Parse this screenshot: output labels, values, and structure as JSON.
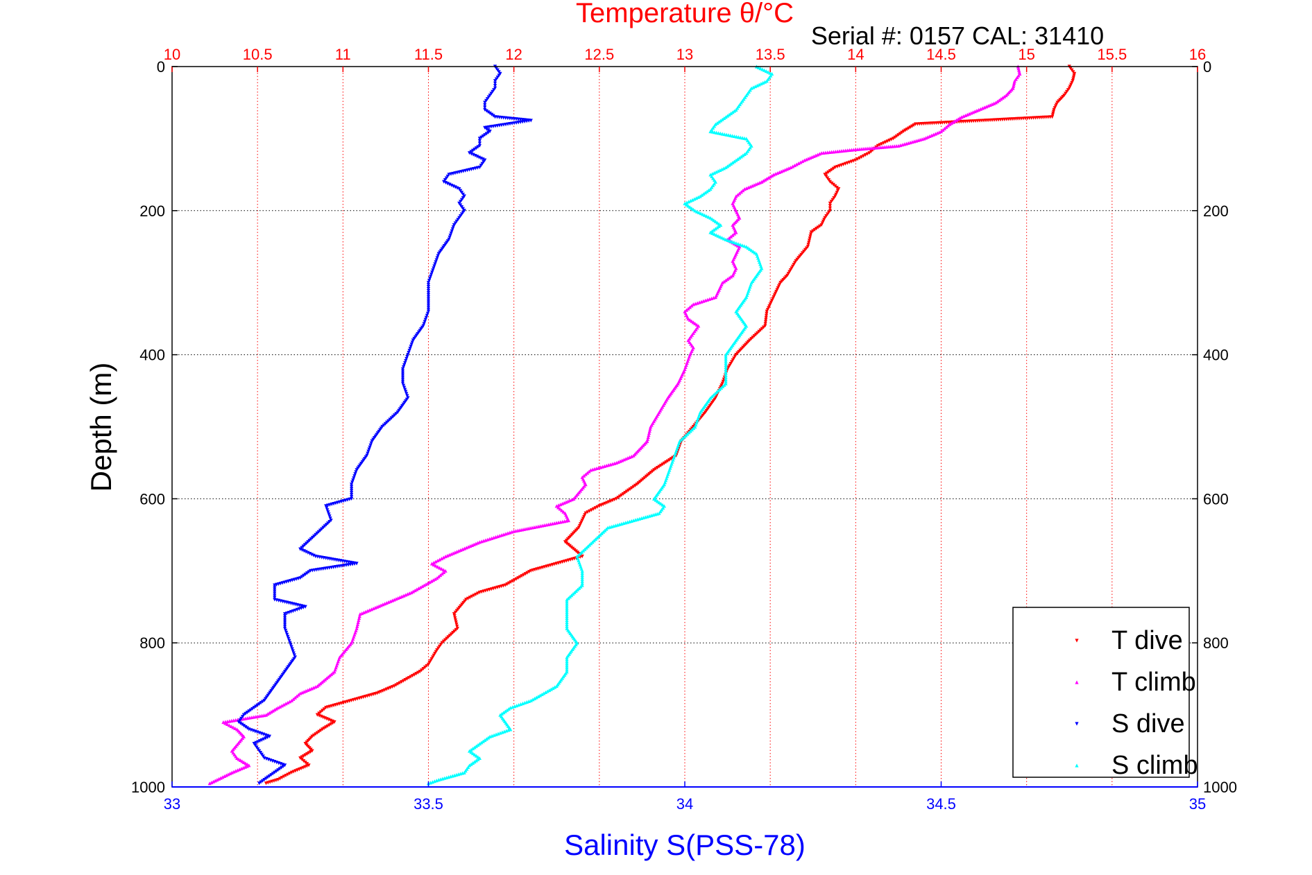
{
  "chart_data": {
    "type": "scatter",
    "title": "Temperature θ/°C",
    "subtitle": "Serial #: 0157  CAL: 31410",
    "ylabel": "Depth (m)",
    "xlabel_bottom": "Salinity S(PSS-78)",
    "xlabel_top": "Temperature θ/°C",
    "ylim": [
      1000,
      0
    ],
    "xlim_bottom": [
      33,
      35
    ],
    "xlim_top": [
      10,
      16
    ],
    "grid": true,
    "legend_position": "bottom-right",
    "y_ticks": [
      "0",
      "200",
      "400",
      "600",
      "800",
      "1000"
    ],
    "x_ticks_top": [
      "10",
      "10.5",
      "11",
      "11.5",
      "12",
      "12.5",
      "13",
      "13.5",
      "14",
      "14.5",
      "15",
      "15.5",
      "16"
    ],
    "x_ticks_bottom": [
      "33",
      "33.5",
      "34",
      "34.5",
      "35"
    ],
    "colors": {
      "temperature_axis": "#ff0000",
      "salinity_axis": "#0000ff",
      "grid_temperature": "#ff0000",
      "grid_depth": "#000000"
    },
    "series": [
      {
        "name": "T dive",
        "axis": "top",
        "color": "#ff0000",
        "marker": "down-triangle",
        "points": [
          [
            15.25,
            0
          ],
          [
            15.28,
            10
          ],
          [
            15.27,
            20
          ],
          [
            15.25,
            30
          ],
          [
            15.22,
            40
          ],
          [
            15.18,
            50
          ],
          [
            15.16,
            60
          ],
          [
            15.15,
            70
          ],
          [
            14.35,
            80
          ],
          [
            14.28,
            90
          ],
          [
            14.22,
            100
          ],
          [
            14.13,
            110
          ],
          [
            14.08,
            120
          ],
          [
            14.0,
            130
          ],
          [
            13.88,
            140
          ],
          [
            13.82,
            150
          ],
          [
            13.85,
            160
          ],
          [
            13.9,
            170
          ],
          [
            13.88,
            180
          ],
          [
            13.85,
            190
          ],
          [
            13.85,
            200
          ],
          [
            13.82,
            210
          ],
          [
            13.8,
            220
          ],
          [
            13.74,
            230
          ],
          [
            13.72,
            250
          ],
          [
            13.65,
            270
          ],
          [
            13.6,
            290
          ],
          [
            13.56,
            300
          ],
          [
            13.52,
            320
          ],
          [
            13.48,
            340
          ],
          [
            13.47,
            360
          ],
          [
            13.38,
            380
          ],
          [
            13.3,
            400
          ],
          [
            13.25,
            420
          ],
          [
            13.22,
            440
          ],
          [
            13.18,
            460
          ],
          [
            13.12,
            480
          ],
          [
            13.05,
            500
          ],
          [
            12.98,
            520
          ],
          [
            12.95,
            540
          ],
          [
            12.82,
            560
          ],
          [
            12.72,
            580
          ],
          [
            12.6,
            600
          ],
          [
            12.5,
            610
          ],
          [
            12.42,
            620
          ],
          [
            12.38,
            640
          ],
          [
            12.3,
            660
          ],
          [
            12.4,
            680
          ],
          [
            12.1,
            700
          ],
          [
            11.95,
            720
          ],
          [
            11.8,
            730
          ],
          [
            11.72,
            740
          ],
          [
            11.65,
            760
          ],
          [
            11.67,
            780
          ],
          [
            11.58,
            800
          ],
          [
            11.55,
            810
          ],
          [
            11.5,
            830
          ],
          [
            11.45,
            840
          ],
          [
            11.3,
            860
          ],
          [
            11.2,
            870
          ],
          [
            11.05,
            880
          ],
          [
            10.9,
            890
          ],
          [
            10.85,
            900
          ],
          [
            10.95,
            910
          ],
          [
            10.88,
            920
          ],
          [
            10.82,
            930
          ],
          [
            10.78,
            940
          ],
          [
            10.82,
            950
          ],
          [
            10.75,
            960
          ],
          [
            10.8,
            970
          ],
          [
            10.7,
            980
          ],
          [
            10.62,
            990
          ],
          [
            10.55,
            995
          ]
        ]
      },
      {
        "name": "T climb",
        "axis": "top",
        "color": "#ff00ff",
        "marker": "up-triangle",
        "points": [
          [
            14.95,
            0
          ],
          [
            14.96,
            10
          ],
          [
            14.93,
            20
          ],
          [
            14.92,
            30
          ],
          [
            14.88,
            40
          ],
          [
            14.82,
            50
          ],
          [
            14.72,
            60
          ],
          [
            14.62,
            70
          ],
          [
            14.55,
            80
          ],
          [
            14.5,
            90
          ],
          [
            14.4,
            100
          ],
          [
            14.25,
            110
          ],
          [
            14.0,
            115
          ],
          [
            13.8,
            120
          ],
          [
            13.7,
            130
          ],
          [
            13.62,
            140
          ],
          [
            13.52,
            150
          ],
          [
            13.45,
            160
          ],
          [
            13.35,
            170
          ],
          [
            13.3,
            180
          ],
          [
            13.28,
            190
          ],
          [
            13.3,
            200
          ],
          [
            13.32,
            210
          ],
          [
            13.28,
            220
          ],
          [
            13.3,
            230
          ],
          [
            13.25,
            240
          ],
          [
            13.32,
            250
          ],
          [
            13.3,
            260
          ],
          [
            13.28,
            270
          ],
          [
            13.3,
            280
          ],
          [
            13.28,
            290
          ],
          [
            13.22,
            300
          ],
          [
            13.2,
            310
          ],
          [
            13.18,
            320
          ],
          [
            13.05,
            330
          ],
          [
            13.0,
            340
          ],
          [
            13.02,
            350
          ],
          [
            13.08,
            360
          ],
          [
            13.05,
            370
          ],
          [
            13.02,
            380
          ],
          [
            13.05,
            390
          ],
          [
            13.03,
            400
          ],
          [
            13.0,
            420
          ],
          [
            12.96,
            440
          ],
          [
            12.9,
            460
          ],
          [
            12.85,
            480
          ],
          [
            12.8,
            500
          ],
          [
            12.78,
            520
          ],
          [
            12.7,
            540
          ],
          [
            12.6,
            550
          ],
          [
            12.45,
            560
          ],
          [
            12.4,
            570
          ],
          [
            12.42,
            580
          ],
          [
            12.35,
            600
          ],
          [
            12.25,
            610
          ],
          [
            12.3,
            620
          ],
          [
            12.32,
            630
          ],
          [
            12.0,
            645
          ],
          [
            11.8,
            660
          ],
          [
            11.7,
            670
          ],
          [
            11.6,
            680
          ],
          [
            11.52,
            690
          ],
          [
            11.6,
            700
          ],
          [
            11.55,
            710
          ],
          [
            11.4,
            730
          ],
          [
            11.2,
            750
          ],
          [
            11.1,
            760
          ],
          [
            11.08,
            780
          ],
          [
            11.05,
            800
          ],
          [
            10.98,
            820
          ],
          [
            10.95,
            840
          ],
          [
            10.85,
            860
          ],
          [
            10.75,
            870
          ],
          [
            10.7,
            880
          ],
          [
            10.62,
            890
          ],
          [
            10.55,
            900
          ],
          [
            10.3,
            910
          ],
          [
            10.38,
            920
          ],
          [
            10.42,
            930
          ],
          [
            10.35,
            950
          ],
          [
            10.38,
            960
          ],
          [
            10.45,
            970
          ],
          [
            10.35,
            980
          ],
          [
            10.22,
            995
          ]
        ]
      },
      {
        "name": "S dive",
        "axis": "bottom",
        "color": "#0000ff",
        "marker": "down-triangle",
        "points": [
          [
            33.63,
            0
          ],
          [
            33.64,
            10
          ],
          [
            33.63,
            20
          ],
          [
            33.63,
            30
          ],
          [
            33.62,
            40
          ],
          [
            33.61,
            50
          ],
          [
            33.61,
            60
          ],
          [
            33.63,
            70
          ],
          [
            33.7,
            75
          ],
          [
            33.61,
            85
          ],
          [
            33.62,
            90
          ],
          [
            33.6,
            100
          ],
          [
            33.6,
            110
          ],
          [
            33.58,
            120
          ],
          [
            33.61,
            130
          ],
          [
            33.6,
            140
          ],
          [
            33.54,
            150
          ],
          [
            33.53,
            160
          ],
          [
            33.56,
            170
          ],
          [
            33.57,
            180
          ],
          [
            33.56,
            190
          ],
          [
            33.57,
            200
          ],
          [
            33.56,
            210
          ],
          [
            33.55,
            220
          ],
          [
            33.54,
            240
          ],
          [
            33.52,
            260
          ],
          [
            33.51,
            280
          ],
          [
            33.5,
            300
          ],
          [
            33.5,
            320
          ],
          [
            33.5,
            340
          ],
          [
            33.49,
            360
          ],
          [
            33.47,
            380
          ],
          [
            33.46,
            400
          ],
          [
            33.45,
            420
          ],
          [
            33.45,
            440
          ],
          [
            33.46,
            460
          ],
          [
            33.44,
            480
          ],
          [
            33.41,
            500
          ],
          [
            33.39,
            520
          ],
          [
            33.38,
            540
          ],
          [
            33.36,
            560
          ],
          [
            33.35,
            580
          ],
          [
            33.35,
            600
          ],
          [
            33.3,
            610
          ],
          [
            33.31,
            630
          ],
          [
            33.28,
            650
          ],
          [
            33.25,
            670
          ],
          [
            33.28,
            680
          ],
          [
            33.36,
            690
          ],
          [
            33.27,
            700
          ],
          [
            33.25,
            710
          ],
          [
            33.2,
            720
          ],
          [
            33.2,
            740
          ],
          [
            33.26,
            750
          ],
          [
            33.22,
            760
          ],
          [
            33.22,
            780
          ],
          [
            33.23,
            800
          ],
          [
            33.24,
            820
          ],
          [
            33.22,
            840
          ],
          [
            33.2,
            860
          ],
          [
            33.18,
            880
          ],
          [
            33.14,
            900
          ],
          [
            33.13,
            910
          ],
          [
            33.15,
            920
          ],
          [
            33.19,
            930
          ],
          [
            33.16,
            940
          ],
          [
            33.17,
            950
          ],
          [
            33.18,
            960
          ],
          [
            33.22,
            970
          ],
          [
            33.2,
            980
          ],
          [
            33.18,
            990
          ],
          [
            33.17,
            995
          ]
        ]
      },
      {
        "name": "S climb",
        "axis": "bottom",
        "color": "#00ffff",
        "marker": "up-triangle",
        "points": [
          [
            34.14,
            0
          ],
          [
            34.17,
            10
          ],
          [
            34.16,
            20
          ],
          [
            34.13,
            30
          ],
          [
            34.12,
            40
          ],
          [
            34.11,
            50
          ],
          [
            34.1,
            60
          ],
          [
            34.08,
            70
          ],
          [
            34.06,
            80
          ],
          [
            34.05,
            90
          ],
          [
            34.12,
            100
          ],
          [
            34.13,
            110
          ],
          [
            34.12,
            120
          ],
          [
            34.1,
            130
          ],
          [
            34.08,
            140
          ],
          [
            34.05,
            150
          ],
          [
            34.06,
            160
          ],
          [
            34.05,
            170
          ],
          [
            34.03,
            180
          ],
          [
            34.0,
            190
          ],
          [
            34.02,
            200
          ],
          [
            34.05,
            210
          ],
          [
            34.07,
            220
          ],
          [
            34.05,
            230
          ],
          [
            34.08,
            240
          ],
          [
            34.12,
            250
          ],
          [
            34.14,
            260
          ],
          [
            34.15,
            280
          ],
          [
            34.13,
            300
          ],
          [
            34.12,
            320
          ],
          [
            34.1,
            340
          ],
          [
            34.12,
            360
          ],
          [
            34.1,
            380
          ],
          [
            34.08,
            400
          ],
          [
            34.08,
            420
          ],
          [
            34.08,
            440
          ],
          [
            34.05,
            460
          ],
          [
            34.03,
            480
          ],
          [
            34.02,
            500
          ],
          [
            33.99,
            520
          ],
          [
            33.98,
            540
          ],
          [
            33.97,
            560
          ],
          [
            33.96,
            580
          ],
          [
            33.94,
            600
          ],
          [
            33.96,
            610
          ],
          [
            33.95,
            620
          ],
          [
            33.9,
            630
          ],
          [
            33.85,
            640
          ],
          [
            33.82,
            660
          ],
          [
            33.79,
            680
          ],
          [
            33.8,
            700
          ],
          [
            33.8,
            720
          ],
          [
            33.77,
            740
          ],
          [
            33.77,
            760
          ],
          [
            33.77,
            780
          ],
          [
            33.79,
            800
          ],
          [
            33.77,
            820
          ],
          [
            33.77,
            840
          ],
          [
            33.75,
            860
          ],
          [
            33.7,
            880
          ],
          [
            33.66,
            890
          ],
          [
            33.64,
            900
          ],
          [
            33.66,
            920
          ],
          [
            33.62,
            930
          ],
          [
            33.6,
            940
          ],
          [
            33.58,
            950
          ],
          [
            33.6,
            960
          ],
          [
            33.58,
            970
          ],
          [
            33.57,
            980
          ],
          [
            33.52,
            990
          ],
          [
            33.5,
            995
          ]
        ]
      }
    ]
  }
}
